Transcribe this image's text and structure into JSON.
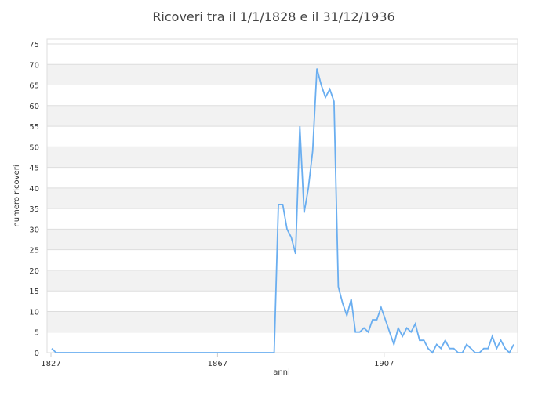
{
  "chart_data": {
    "type": "line",
    "title": "Ricoveri tra il 1/1/1828 e il 31/12/1936",
    "xlabel": "anni",
    "ylabel": "numero ricoveri",
    "ylim": [
      0,
      75
    ],
    "yticks": [
      0,
      5,
      10,
      15,
      20,
      25,
      30,
      35,
      40,
      45,
      50,
      55,
      60,
      65,
      70,
      75
    ],
    "xticks": [
      1827,
      1867,
      1907
    ],
    "grid": true,
    "line_color": "#6aaef0",
    "x_start": 1828,
    "values": [
      1,
      0,
      0,
      0,
      0,
      0,
      0,
      0,
      0,
      0,
      0,
      0,
      0,
      0,
      0,
      0,
      0,
      0,
      0,
      0,
      0,
      0,
      0,
      0,
      0,
      0,
      0,
      0,
      0,
      0,
      0,
      0,
      0,
      0,
      0,
      0,
      0,
      0,
      0,
      0,
      0,
      0,
      0,
      0,
      0,
      0,
      0,
      0,
      0,
      0,
      0,
      0,
      0,
      36,
      36,
      30,
      28,
      24,
      55,
      34,
      40,
      49,
      69,
      65,
      62,
      64,
      61,
      16,
      12,
      9,
      13,
      5,
      5,
      6,
      5,
      8,
      8,
      11,
      8,
      5,
      2,
      6,
      4,
      6,
      5,
      7,
      3,
      3,
      1,
      0,
      2,
      1,
      3,
      1,
      1,
      0,
      0,
      2,
      1,
      0,
      0,
      1,
      1,
      4,
      1,
      3,
      1,
      0,
      2
    ]
  }
}
